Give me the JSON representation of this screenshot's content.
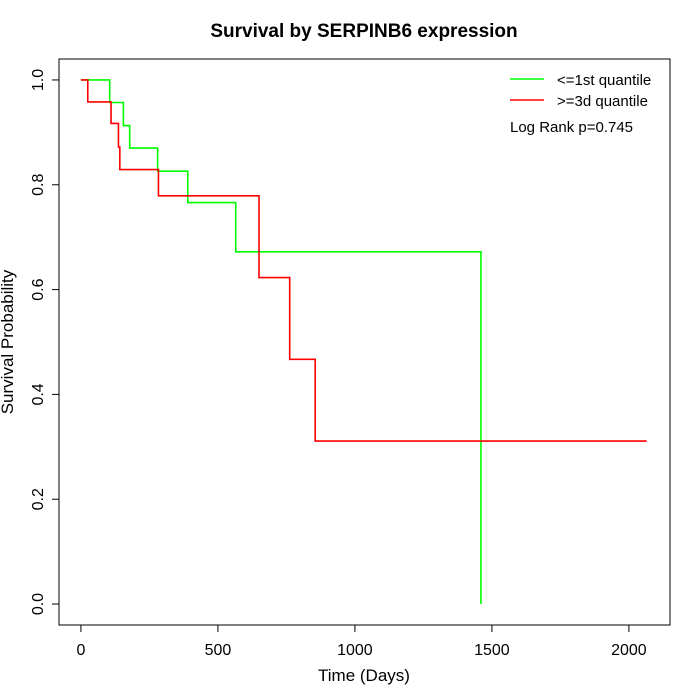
{
  "chart_data": {
    "type": "line",
    "title": "Survival by SERPINB6 expression",
    "xlabel": "Time (Days)",
    "ylabel": "Survival Probability",
    "xlim": [
      -80,
      2150
    ],
    "ylim": [
      -0.04,
      1.04
    ],
    "x_ticks": [
      0,
      500,
      1000,
      1500,
      2000
    ],
    "y_ticks": [
      0.0,
      0.2,
      0.4,
      0.6,
      0.8,
      1.0
    ],
    "x_tick_labels": [
      "0",
      "500",
      "1000",
      "1500",
      "2000"
    ],
    "y_tick_labels": [
      "0.0",
      "0.2",
      "0.4",
      "0.6",
      "0.8",
      "1.0"
    ],
    "grid": false,
    "legend_position": "top-right",
    "annotation": "Log Rank p=0.745",
    "series": [
      {
        "name": "<=1st quantile",
        "color": "#00ff00",
        "steps": [
          [
            0,
            1.0
          ],
          [
            105,
            0.957
          ],
          [
            155,
            0.913
          ],
          [
            178,
            0.87
          ],
          [
            280,
            0.826
          ],
          [
            390,
            0.766
          ],
          [
            565,
            0.672
          ],
          [
            1460,
            0.0
          ]
        ]
      },
      {
        "name": ">=3d quantile",
        "color": "#ff0000",
        "steps": [
          [
            0,
            1.0
          ],
          [
            25,
            0.958
          ],
          [
            110,
            0.917
          ],
          [
            137,
            0.872
          ],
          [
            142,
            0.829
          ],
          [
            283,
            0.779
          ],
          [
            650,
            0.623
          ],
          [
            762,
            0.467
          ],
          [
            855,
            0.311
          ],
          [
            2065,
            0.311
          ]
        ]
      }
    ]
  }
}
